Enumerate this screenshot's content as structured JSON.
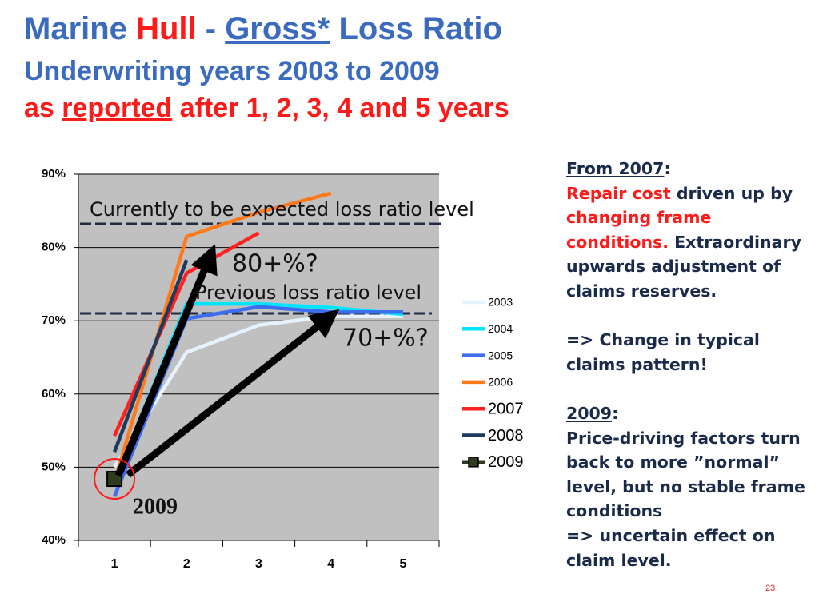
{
  "slide": {
    "title": [
      "Marine",
      "Hull",
      "-",
      "Gross*",
      "Loss Ratio"
    ],
    "subtitle": "Underwriting years 2003 to 2009",
    "subtitle2": [
      "as",
      "reported",
      "after 1, 2, 3, 4 and 5 years"
    ],
    "note": [
      "From 2007",
      ":",
      "Repair cost",
      " driven up by ",
      "changing frame conditions.",
      " Extraordinary upwards adjustment of claims reserves.",
      "=> Change in typical claims pattern!",
      "2009",
      ":",
      "Price-driving factors turn back to more ”normal” level, but no stable frame conditions",
      "=> uncertain effect on claim level."
    ],
    "page": "23"
  },
  "chart_data": {
    "type": "line",
    "categories": [
      "1",
      "2",
      "3",
      "4",
      "5"
    ],
    "series": [
      {
        "name": "2003",
        "color": "#e6f2ff",
        "values": [
          50,
          65.7,
          69.4,
          70.6,
          70.6
        ]
      },
      {
        "name": "2004",
        "color": "#00e5ff",
        "values": [
          48,
          72.3,
          72.3,
          71.8,
          70.9
        ]
      },
      {
        "name": "2005",
        "color": "#3d6ef0",
        "values": [
          46,
          70.3,
          71.9,
          71.2,
          71.2
        ]
      },
      {
        "name": "2006",
        "color": "#ff7a1a",
        "values": [
          48,
          81.5,
          84.8,
          87.4,
          null
        ]
      },
      {
        "name": "2007",
        "color": "#ff2020",
        "values": [
          54.3,
          76.5,
          82,
          null,
          null
        ]
      },
      {
        "name": "2008",
        "color": "#1f3a5f",
        "values": [
          52.1,
          78.3,
          null,
          null,
          null
        ]
      },
      {
        "name": "2009",
        "color": "#2f3b1f",
        "values": [
          48.4,
          null,
          null,
          null,
          null
        ]
      }
    ],
    "ylim": [
      40,
      90
    ],
    "yticks": [
      {
        "value": 40,
        "label": "40%"
      },
      {
        "value": 50,
        "label": "50%"
      },
      {
        "value": 60,
        "label": "60%"
      },
      {
        "value": 70,
        "label": "70%"
      },
      {
        "value": 80,
        "label": "80%"
      },
      {
        "value": 90,
        "label": "90%"
      }
    ],
    "grid": true,
    "annotations": [
      "Currently to be expected loss ratio level",
      "80+%?",
      "Previous loss ratio level",
      "70+%?",
      "2009"
    ]
  }
}
